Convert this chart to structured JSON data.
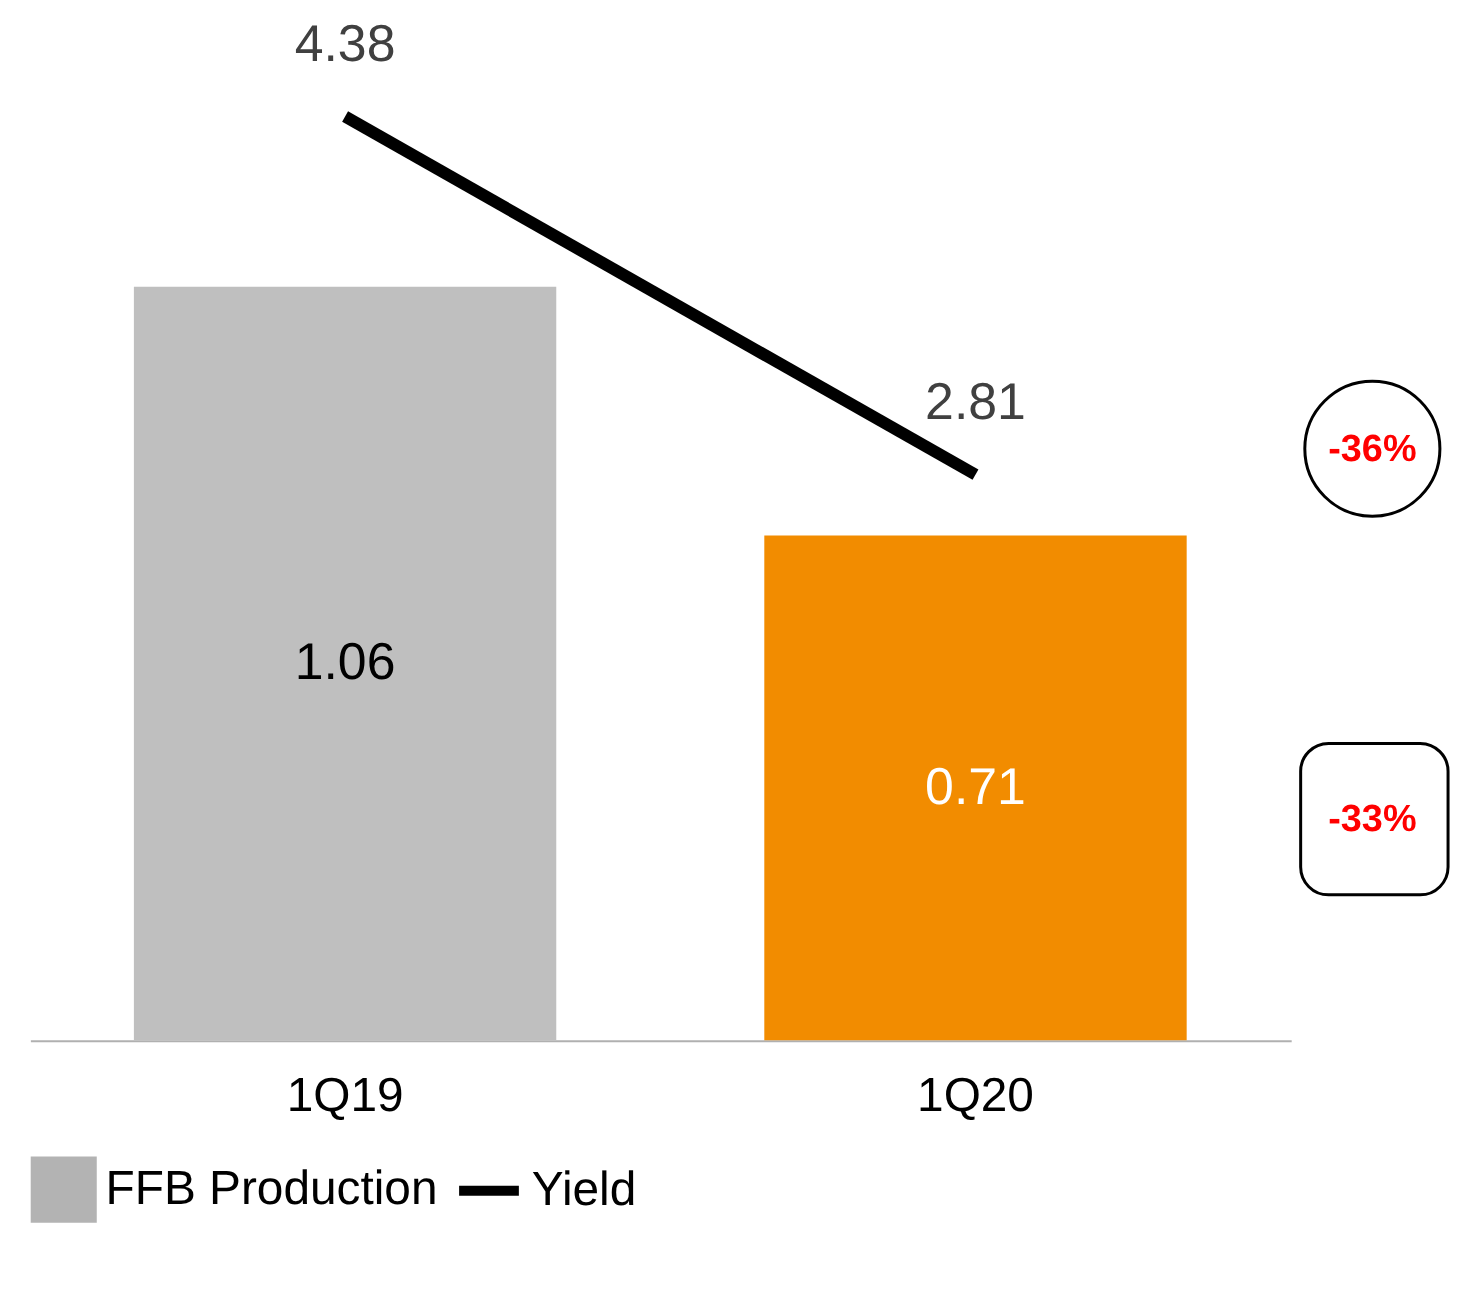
{
  "chart_data": {
    "type": "bar",
    "categories": [
      "1Q19",
      "1Q20"
    ],
    "series": [
      {
        "name": "FFB Production",
        "color": "#b3b3b3",
        "colors": [
          "#bfbfbf",
          "#f28c00"
        ],
        "values": [
          1.06,
          0.71
        ]
      },
      {
        "name": "Yield",
        "type": "line",
        "axis": "y2",
        "color": "#000000",
        "values": [
          4.38,
          2.81
        ]
      }
    ],
    "ylim": [
      0,
      1.46
    ],
    "y2lim": [
      0.33,
      4.88
    ],
    "tick_labels": "x",
    "data_labels": true,
    "legend": "bottom",
    "grid": false,
    "marker": "none",
    "annotations": [
      "-36%",
      "-33%"
    ]
  }
}
